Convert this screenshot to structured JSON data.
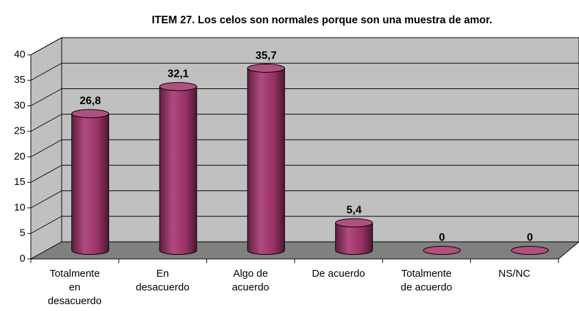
{
  "chart_data": {
    "type": "bar",
    "title": "ITEM 27. Los celos son normales porque son una muestra de amor.",
    "categories": [
      "Totalmente\nen\ndesacuerdo",
      "En\ndesacuerdo",
      "Algo de\nacuerdo",
      "De acuerdo",
      "Totalmente\nde acuerdo",
      "NS/NC"
    ],
    "values": [
      26.8,
      32.1,
      35.7,
      5.4,
      0,
      0
    ],
    "value_labels": [
      "26,8",
      "32,1",
      "35,7",
      "5,4",
      "0",
      "0"
    ],
    "color": "#993366",
    "ylim": [
      0,
      40
    ],
    "yticks": [
      0,
      5,
      10,
      15,
      20,
      25,
      30,
      35,
      40
    ],
    "grid": true
  }
}
